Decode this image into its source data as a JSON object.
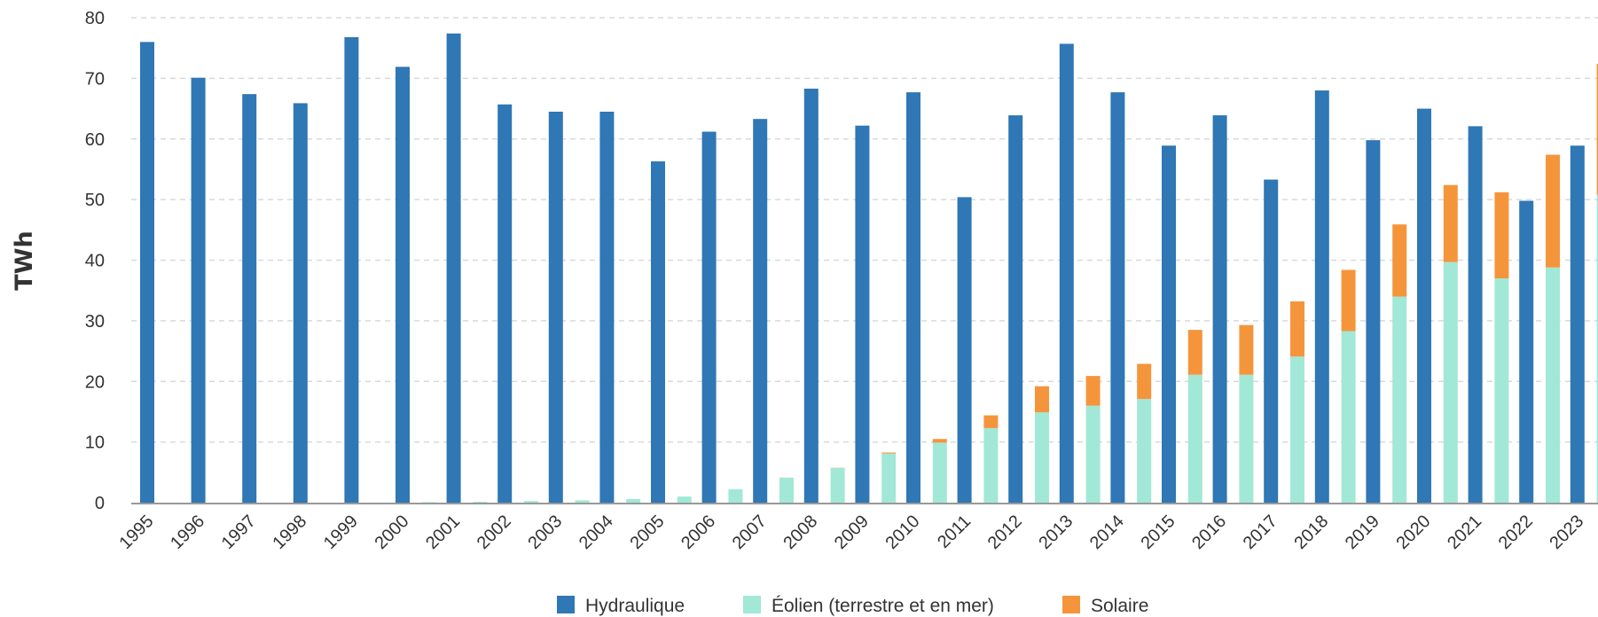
{
  "chart_data": {
    "type": "bar",
    "ylabel": "TWh",
    "ylim": [
      0,
      80
    ],
    "yticks": [
      0,
      10,
      20,
      30,
      40,
      50,
      60,
      70,
      80
    ],
    "grid": true,
    "legend_position": "bottom-center",
    "categories": [
      "1995",
      "1996",
      "1997",
      "1998",
      "1999",
      "2000",
      "2001",
      "2002",
      "2003",
      "2004",
      "2005",
      "2006",
      "2007",
      "2008",
      "2009",
      "2010",
      "2011",
      "2012",
      "2013",
      "2014",
      "2015",
      "2016",
      "2017",
      "2018",
      "2019",
      "2020",
      "2021",
      "2022",
      "2023"
    ],
    "series": [
      {
        "name": "Hydraulique",
        "color": "#2f77b5",
        "stack": "hydro",
        "values": [
          76.0,
          70.1,
          67.4,
          65.9,
          76.8,
          71.9,
          77.4,
          65.7,
          64.5,
          64.5,
          56.3,
          61.2,
          63.3,
          68.3,
          62.2,
          67.7,
          50.4,
          63.9,
          75.7,
          67.7,
          58.9,
          63.9,
          53.3,
          68.0,
          59.8,
          65.0,
          62.1,
          49.8,
          58.9
        ]
      },
      {
        "name": "Éolien (terrestre et en mer)",
        "color": "#a2e8d6",
        "stack": "renew",
        "values": [
          0,
          0,
          0,
          0,
          0.02,
          0.08,
          0.13,
          0.27,
          0.38,
          0.6,
          1.0,
          2.2,
          4.1,
          5.7,
          8.1,
          9.9,
          12.3,
          14.9,
          16.0,
          17.1,
          21.1,
          21.1,
          24.1,
          28.3,
          34.0,
          39.7,
          37.0,
          38.8,
          50.8
        ]
      },
      {
        "name": "Solaire",
        "color": "#f5953b",
        "stack": "renew",
        "values": [
          0,
          0,
          0,
          0,
          0,
          0,
          0,
          0,
          0,
          0,
          0,
          0,
          0.02,
          0.04,
          0.17,
          0.6,
          2.1,
          4.3,
          4.9,
          5.8,
          7.4,
          8.2,
          9.1,
          10.1,
          11.9,
          12.7,
          14.2,
          18.6,
          21.6
        ]
      }
    ]
  }
}
